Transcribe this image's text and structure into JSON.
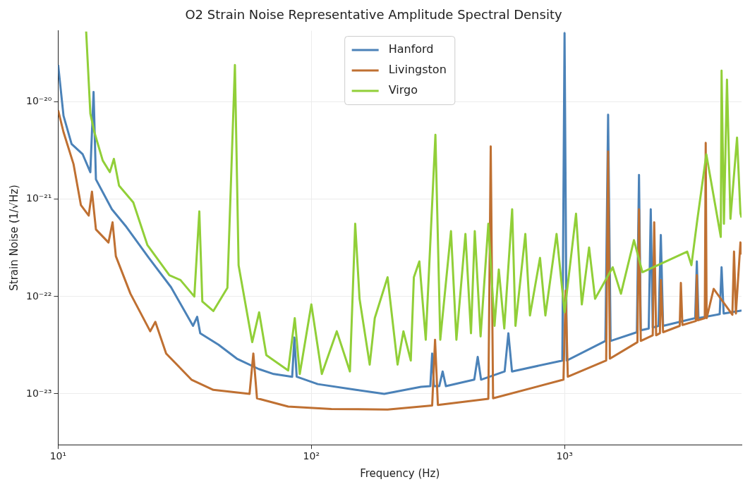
{
  "chart_data": {
    "type": "line",
    "title": "O2 Strain Noise Representative Amplitude Spectral Density",
    "xlabel": "Frequency (Hz)",
    "ylabel": "Strain Noise (1/√Hz)",
    "log": "xy",
    "grid": true,
    "legend": "top",
    "marker": "none",
    "line_style": "solid",
    "xlim": [
      10,
      5000
    ],
    "ylim": [
      3e-24,
      5.4e-20
    ],
    "xticks": [
      {
        "value": 10,
        "label": "10¹"
      },
      {
        "value": 100,
        "label": "10²"
      },
      {
        "value": 1000,
        "label": "10³"
      }
    ],
    "yticks": [
      {
        "value": 1e-23,
        "label": "10⁻²³"
      },
      {
        "value": 1e-22,
        "label": "10⁻²²"
      },
      {
        "value": 1e-21,
        "label": "10⁻²¹"
      },
      {
        "value": 1e-20,
        "label": "10⁻²⁰"
      }
    ],
    "series": [
      {
        "name": "Hanford",
        "color": "#4b82b8",
        "x": [
          10,
          10.5,
          11.3,
          12.5,
          13.4,
          13.8,
          14.1,
          16.3,
          18.6,
          22.8,
          27.9,
          34.1,
          35.4,
          36.4,
          43,
          50.8,
          62,
          71,
          84,
          85.7,
          87.5,
          106,
          150,
          194,
          271,
          295,
          300,
          305,
          320,
          330,
          340,
          440,
          454,
          468,
          580,
          600,
          620,
          980,
          1000,
          1020,
          1450,
          1486,
          1520,
          1930,
          1968,
          2000,
          2150,
          2190,
          2230,
          2350,
          2400,
          2450,
          3280,
          3330,
          3380,
          4100,
          4170,
          4250,
          5000
        ],
        "values": [
          2.4e-20,
          7.2e-21,
          3.7e-21,
          2.9e-21,
          1.9e-21,
          1.27e-20,
          1.6e-21,
          7.9e-22,
          5.2e-22,
          2.5e-22,
          1.25e-22,
          5e-23,
          6.2e-23,
          4.2e-23,
          3.2e-23,
          2.3e-23,
          1.8e-23,
          1.6e-23,
          1.5e-23,
          3.8e-23,
          1.5e-23,
          1.26e-23,
          1.1e-23,
          1e-23,
          1.18e-23,
          1.2e-23,
          2.6e-23,
          1.2e-23,
          1.2e-23,
          1.7e-23,
          1.2e-23,
          1.4e-23,
          2.4e-23,
          1.4e-23,
          1.7e-23,
          4.2e-23,
          1.7e-23,
          2.2e-23,
          5.1e-20,
          2.2e-23,
          3.5e-23,
          7.4e-21,
          3.5e-23,
          4.3e-23,
          1.78e-21,
          4.5e-23,
          4.7e-23,
          7.9e-22,
          4.8e-23,
          5e-23,
          4.3e-22,
          5e-23,
          6e-23,
          2.3e-22,
          6e-23,
          6.6e-23,
          2e-22,
          6.7e-23,
          7.2e-23
        ]
      },
      {
        "name": "Livingston",
        "color": "#bf7032",
        "x": [
          10,
          10.5,
          11.5,
          12.3,
          13.2,
          13.6,
          14.1,
          15.8,
          16.4,
          16.9,
          19.3,
          23.1,
          24.2,
          26.7,
          33.6,
          41,
          57,
          59,
          61,
          81,
          120,
          200,
          300,
          308,
          316,
          500,
          511,
          522,
          990,
          1010,
          1030,
          1460,
          1486,
          1510,
          1940,
          1968,
          2000,
          2230,
          2260,
          2300,
          2380,
          2400,
          2450,
          2850,
          2880,
          2920,
          3300,
          3330,
          3360,
          3580,
          3610,
          3640,
          3880,
          4600,
          4670,
          4750,
          4950,
          5000
        ],
        "values": [
          8.2e-21,
          4.9e-21,
          2.3e-21,
          8.7e-22,
          6.8e-22,
          1.2e-21,
          4.9e-22,
          3.6e-22,
          5.8e-22,
          2.6e-22,
          1.07e-22,
          4.4e-23,
          5.5e-23,
          2.6e-23,
          1.4e-23,
          1.1e-23,
          1e-23,
          2.6e-23,
          9e-24,
          7.4e-24,
          7e-24,
          6.9e-24,
          7.6e-24,
          3.6e-23,
          7.7e-24,
          8.9e-24,
          3.5e-21,
          9e-24,
          1.4e-23,
          1.15e-22,
          1.5e-23,
          2.2e-23,
          3.1e-21,
          2.3e-23,
          3.4e-23,
          7.9e-22,
          3.5e-23,
          4e-23,
          5.8e-22,
          4e-23,
          4.2e-23,
          1.48e-22,
          4.3e-23,
          5e-23,
          1.38e-22,
          5.1e-23,
          5.6e-23,
          1.66e-22,
          5.7e-23,
          6e-23,
          3.8e-21,
          6e-23,
          1.2e-22,
          6.5e-23,
          2.9e-22,
          6.7e-23,
          3.6e-22,
          2.7e-22
        ]
      },
      {
        "name": "Virgo",
        "color": "#91cf38",
        "x": [
          12.9,
          13.4,
          13.9,
          15.0,
          16.0,
          16.6,
          17.4,
          19.8,
          22.5,
          27.5,
          30.4,
          34.5,
          36.1,
          37.1,
          41,
          46.6,
          49.9,
          51.6,
          58.4,
          62.2,
          66.4,
          81,
          86,
          90,
          100,
          110,
          126,
          142,
          149,
          155,
          170,
          178,
          200,
          219,
          231,
          247,
          254,
          267,
          283,
          309,
          323,
          356,
          374,
          406,
          427,
          442,
          466,
          500,
          529,
          550,
          578,
          621,
          640,
          700,
          730,
          800,
          840,
          930,
          1000,
          1110,
          1170,
          1250,
          1320,
          1550,
          1670,
          1880,
          2030,
          3050,
          3170,
          3340,
          3630,
          4140,
          4170,
          4260,
          4380,
          4520,
          4800,
          4950,
          5000
        ],
        "values": [
          5.3e-20,
          7.6e-21,
          4.9e-21,
          2.5e-21,
          1.9e-21,
          2.6e-21,
          1.38e-21,
          9.3e-22,
          3.4e-22,
          1.66e-22,
          1.48e-22,
          1e-22,
          7.5e-22,
          8.9e-23,
          7.1e-23,
          1.23e-22,
          2.4e-20,
          2.1e-22,
          3.4e-23,
          6.9e-23,
          2.5e-23,
          1.74e-23,
          6e-23,
          1.6e-23,
          8.3e-23,
          1.6e-23,
          4.4e-23,
          1.7e-23,
          5.6e-22,
          9.5e-23,
          2e-23,
          6e-23,
          1.58e-22,
          2e-23,
          4.4e-23,
          2.2e-23,
          1.58e-22,
          2.3e-22,
          3.6e-23,
          4.6e-21,
          3.6e-23,
          4.7e-22,
          3.6e-23,
          4.4e-22,
          4.2e-23,
          4.7e-22,
          3.9e-23,
          5.6e-22,
          5e-23,
          1.9e-22,
          4.7e-23,
          7.9e-22,
          5e-23,
          4.4e-22,
          6.4e-23,
          2.5e-22,
          6.4e-23,
          4.4e-22,
          6.9e-23,
          7.1e-22,
          8.3e-23,
          3.2e-22,
          9.5e-23,
          2e-22,
          1.07e-22,
          3.8e-22,
          1.78e-22,
          2.9e-22,
          2.1e-22,
          6e-22,
          2.9e-21,
          4.1e-22,
          2.1e-20,
          5.6e-22,
          1.7e-20,
          6.3e-22,
          4.3e-21,
          7.2e-22,
          6.5e-22
        ]
      }
    ]
  }
}
